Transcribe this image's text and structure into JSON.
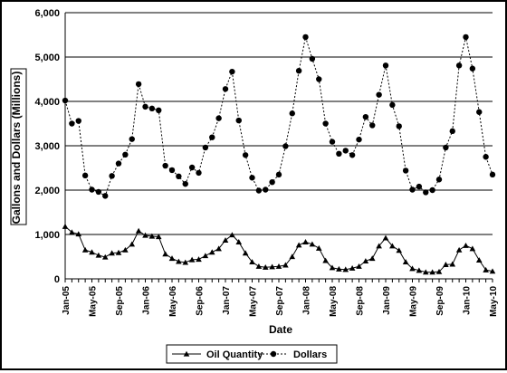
{
  "chart_data": {
    "type": "line",
    "xlabel": "Date",
    "ylabel": "Gallons and Dollars (Millions)",
    "ylim": [
      0,
      6000
    ],
    "yticks": [
      0,
      1000,
      2000,
      3000,
      4000,
      5000,
      6000
    ],
    "ytick_labels": [
      "0",
      "1,000",
      "2,000",
      "3,000",
      "4,000",
      "5,000",
      "6,000"
    ],
    "x": [
      "Jan-05",
      "Feb-05",
      "Mar-05",
      "Apr-05",
      "May-05",
      "Jun-05",
      "Jul-05",
      "Aug-05",
      "Sep-05",
      "Oct-05",
      "Nov-05",
      "Dec-05",
      "Jan-06",
      "Feb-06",
      "Mar-06",
      "Apr-06",
      "May-06",
      "Jun-06",
      "Jul-06",
      "Aug-06",
      "Sep-06",
      "Oct-06",
      "Nov-06",
      "Dec-06",
      "Jan-07",
      "Feb-07",
      "Mar-07",
      "Apr-07",
      "May-07",
      "Jun-07",
      "Jul-07",
      "Aug-07",
      "Sep-07",
      "Oct-07",
      "Nov-07",
      "Dec-07",
      "Jan-08",
      "Feb-08",
      "Mar-08",
      "Apr-08",
      "May-08",
      "Jun-08",
      "Jul-08",
      "Aug-08",
      "Sep-08",
      "Oct-08",
      "Nov-08",
      "Dec-08",
      "Jan-09",
      "Feb-09",
      "Mar-09",
      "Apr-09",
      "May-09",
      "Jun-09",
      "Jul-09",
      "Aug-09",
      "Sep-09",
      "Oct-09",
      "Nov-09",
      "Dec-09",
      "Jan-10",
      "Feb-10",
      "Mar-10",
      "Apr-10",
      "May-10"
    ],
    "xtick_labels": [
      "Jan-05",
      "May-05",
      "Sep-05",
      "Jan-06",
      "May-06",
      "Sep-06",
      "Jan-07",
      "May-07",
      "Sep-07",
      "Jan-08",
      "May-08",
      "Sep-08",
      "Jan-09",
      "May-09",
      "Sep-09",
      "Jan-10",
      "May-10"
    ],
    "series": [
      {
        "name": "Oil Quantity",
        "marker": "triangle",
        "line_style": "solid",
        "values": [
          1180,
          1050,
          1010,
          650,
          600,
          530,
          490,
          580,
          590,
          650,
          780,
          1080,
          980,
          960,
          950,
          560,
          460,
          390,
          370,
          430,
          440,
          520,
          600,
          680,
          870,
          990,
          830,
          580,
          380,
          280,
          260,
          270,
          280,
          310,
          500,
          760,
          830,
          780,
          690,
          410,
          250,
          220,
          210,
          240,
          280,
          400,
          460,
          740,
          920,
          740,
          640,
          380,
          230,
          190,
          150,
          150,
          160,
          320,
          330,
          650,
          750,
          680,
          420,
          200,
          170
        ]
      },
      {
        "name": "Dollars",
        "marker": "circle",
        "line_style": "dashed",
        "values": [
          4020,
          3500,
          3560,
          2330,
          2010,
          1960,
          1870,
          2320,
          2600,
          2800,
          3150,
          4390,
          3880,
          3840,
          3800,
          2550,
          2450,
          2310,
          2140,
          2510,
          2390,
          2960,
          3190,
          3620,
          4280,
          4670,
          3570,
          2790,
          2280,
          1990,
          2010,
          2180,
          2350,
          2990,
          3730,
          4690,
          5450,
          4960,
          4500,
          3500,
          3090,
          2820,
          2890,
          2790,
          3140,
          3650,
          3460,
          4150,
          4810,
          3920,
          3440,
          2440,
          2010,
          2080,
          1950,
          2000,
          2240,
          2960,
          3330,
          4810,
          5450,
          4740,
          3760,
          2750,
          2350
        ]
      }
    ],
    "legend_position": "bottom",
    "grid": "horizontal"
  }
}
